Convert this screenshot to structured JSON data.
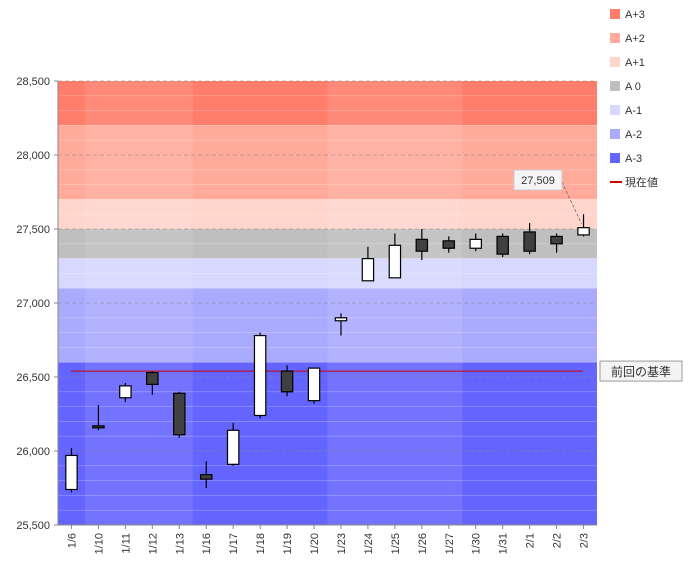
{
  "chart_data": {
    "type": "candlestick",
    "ylim": [
      25500,
      28500
    ],
    "y_ticks": [
      25500,
      26000,
      26500,
      27000,
      27500,
      28000,
      28500
    ],
    "y_tick_labels": [
      "25,500",
      "26,000",
      "26,500",
      "27,000",
      "27,500",
      "28,000",
      "28,500"
    ],
    "categories": [
      "1/6",
      "1/10",
      "1/11",
      "1/12",
      "1/13",
      "1/16",
      "1/17",
      "1/18",
      "1/19",
      "1/20",
      "1/23",
      "1/24",
      "1/25",
      "1/26",
      "1/27",
      "1/30",
      "1/31",
      "2/1",
      "2/2",
      "2/3"
    ],
    "candles": [
      {
        "open": 25740,
        "high": 26020,
        "low": 25720,
        "close": 25970
      },
      {
        "open": 26170,
        "high": 26310,
        "low": 26140,
        "close": 26160
      },
      {
        "open": 26360,
        "high": 26460,
        "low": 26330,
        "close": 26440
      },
      {
        "open": 26530,
        "high": 26540,
        "low": 26380,
        "close": 26450
      },
      {
        "open": 26390,
        "high": 26400,
        "low": 26090,
        "close": 26110
      },
      {
        "open": 25840,
        "high": 25930,
        "low": 25750,
        "close": 25810
      },
      {
        "open": 25910,
        "high": 26190,
        "low": 25900,
        "close": 26140
      },
      {
        "open": 26240,
        "high": 26800,
        "low": 26220,
        "close": 26780
      },
      {
        "open": 26540,
        "high": 26580,
        "low": 26370,
        "close": 26400
      },
      {
        "open": 26340,
        "high": 26560,
        "low": 26320,
        "close": 26560
      },
      {
        "open": 26880,
        "high": 26930,
        "low": 26780,
        "close": 26900
      },
      {
        "open": 27150,
        "high": 27380,
        "low": 27150,
        "close": 27300
      },
      {
        "open": 27170,
        "high": 27470,
        "low": 27170,
        "close": 27390
      },
      {
        "open": 27430,
        "high": 27500,
        "low": 27290,
        "close": 27350
      },
      {
        "open": 27420,
        "high": 27450,
        "low": 27340,
        "close": 27370
      },
      {
        "open": 27370,
        "high": 27470,
        "low": 27350,
        "close": 27430
      },
      {
        "open": 27450,
        "high": 27470,
        "low": 27310,
        "close": 27330
      },
      {
        "open": 27480,
        "high": 27540,
        "low": 27330,
        "close": 27350
      },
      {
        "open": 27450,
        "high": 27470,
        "low": 27340,
        "close": 27400
      },
      {
        "open": 27460,
        "high": 27600,
        "low": 27450,
        "close": 27509
      }
    ],
    "bands": [
      {
        "name": "A+3",
        "from": 28200,
        "to": 28500,
        "color": "#ff7d6b"
      },
      {
        "name": "A+2",
        "from": 27700,
        "to": 28200,
        "color": "#ffaa9a"
      },
      {
        "name": "A+1",
        "from": 27500,
        "to": 27700,
        "color": "#ffd5cc"
      },
      {
        "name": "A 0",
        "from": 27300,
        "to": 27500,
        "color": "#bfbfbf"
      },
      {
        "name": "A-1",
        "from": 27100,
        "to": 27300,
        "color": "#d7d7ff"
      },
      {
        "name": "A-2",
        "from": 26600,
        "to": 27100,
        "color": "#aaaaff"
      },
      {
        "name": "A-3",
        "from": 25500,
        "to": 26600,
        "color": "#6464ff"
      }
    ],
    "legend": [
      {
        "label": "A+3",
        "color": "#ff7d6b",
        "kind": "box"
      },
      {
        "label": "A+2",
        "color": "#ffaa9a",
        "kind": "box"
      },
      {
        "label": "A+1",
        "color": "#ffd5cc",
        "kind": "box"
      },
      {
        "label": "A 0",
        "color": "#bfbfbf",
        "kind": "box"
      },
      {
        "label": "A-1",
        "color": "#d7d7ff",
        "kind": "box"
      },
      {
        "label": "A-2",
        "color": "#aaaaff",
        "kind": "box"
      },
      {
        "label": "A-3",
        "color": "#6464ff",
        "kind": "box"
      },
      {
        "label": "現在値",
        "color": "#cc0000",
        "kind": "line"
      }
    ],
    "legend_position": "top-right",
    "reference_line": {
      "value": 26540,
      "label": "前回の基準",
      "color": "#cc0000"
    },
    "current_value": {
      "value": 27509,
      "label": "27,509"
    },
    "grid": true
  }
}
